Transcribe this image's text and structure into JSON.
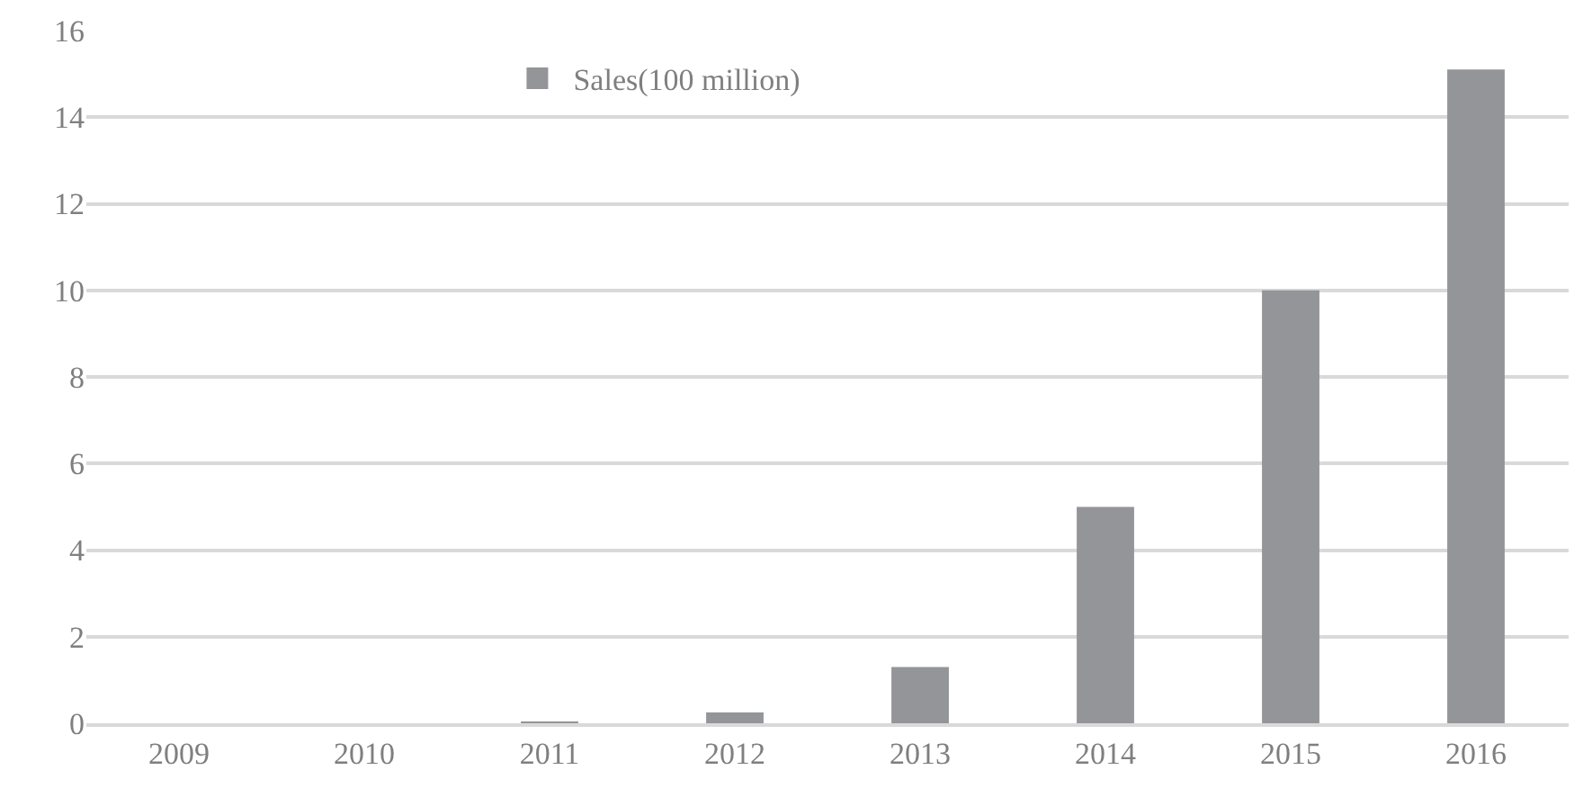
{
  "chart_data": {
    "type": "bar",
    "categories": [
      "2009",
      "2010",
      "2011",
      "2012",
      "2013",
      "2014",
      "2015",
      "2016"
    ],
    "series": [
      {
        "name": "Sales(100 million)",
        "color": "#939598",
        "values": [
          0,
          0,
          0.02,
          0.25,
          1.3,
          5,
          10,
          15.1
        ]
      }
    ],
    "ylim": [
      0,
      16
    ],
    "yticks": [
      0,
      2,
      4,
      6,
      8,
      10,
      12,
      14,
      16
    ],
    "grid": "y",
    "legend": "top left"
  }
}
